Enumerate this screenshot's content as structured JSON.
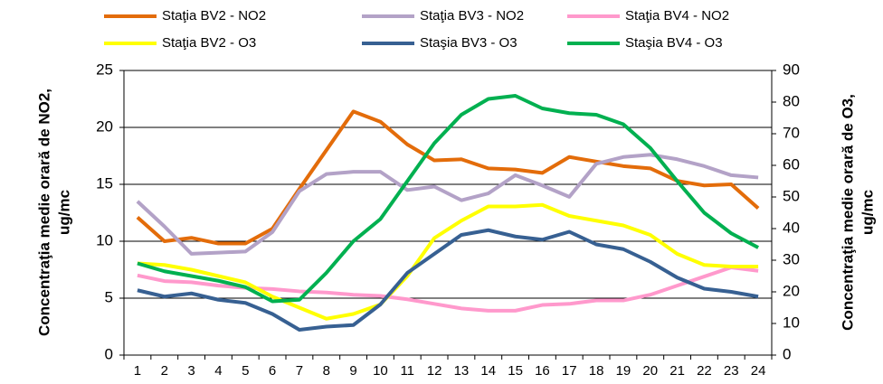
{
  "chart_data": {
    "type": "line",
    "categories": [
      1,
      2,
      3,
      4,
      5,
      6,
      7,
      8,
      9,
      10,
      11,
      12,
      13,
      14,
      15,
      16,
      17,
      18,
      19,
      20,
      21,
      22,
      23,
      24
    ],
    "y_label": [
      "Concentraţia medie orară de NO2,",
      "ug/mc"
    ],
    "y2_label": [
      "Concentraţia medie orară de O3,",
      "ug/mc"
    ],
    "ylim": [
      0,
      25
    ],
    "yticks": [
      0,
      5,
      10,
      15,
      20,
      25
    ],
    "y2lim": [
      0,
      90
    ],
    "y2ticks": [
      0,
      10,
      20,
      30,
      40,
      50,
      60,
      70,
      80,
      90
    ],
    "grid": true,
    "legend": "top",
    "series": [
      {
        "name": "Staţia BV2 - NO2",
        "color": "#e36c0a",
        "values": [
          12.1,
          10.0,
          10.3,
          9.8,
          9.8,
          11.1,
          14.6,
          18.0,
          21.4,
          20.5,
          18.5,
          17.1,
          17.2,
          16.4,
          16.3,
          16.0,
          17.4,
          17.0,
          16.6,
          16.4,
          15.3,
          14.9,
          15.0,
          12.9
        ]
      },
      {
        "name": "Staţia BV3 - NO2",
        "color": "#b3a2c7",
        "values": [
          13.5,
          11.3,
          8.9,
          9.0,
          9.1,
          10.8,
          14.4,
          15.9,
          16.1,
          16.1,
          14.5,
          14.8,
          13.6,
          14.2,
          15.8,
          14.9,
          13.9,
          16.8,
          17.4,
          17.6,
          17.2,
          16.6,
          15.8,
          15.6
        ]
      },
      {
        "name": "Staţia BV4 - NO2",
        "color": "#ff99cc",
        "values": [
          7.0,
          6.5,
          6.4,
          6.1,
          5.9,
          5.8,
          5.6,
          5.5,
          5.3,
          5.2,
          4.9,
          4.5,
          4.1,
          3.9,
          3.9,
          4.4,
          4.5,
          4.8,
          4.8,
          5.3,
          6.1,
          6.9,
          7.7,
          7.4
        ]
      },
      {
        "name": "Staţia BV2 - O3",
        "color": "#ffff00",
        "axis": "y2",
        "values": [
          29,
          28.5,
          27,
          25,
          23,
          18.5,
          15,
          11.5,
          13,
          16,
          25,
          37,
          42.5,
          47,
          47,
          47.5,
          44,
          42.5,
          41,
          38,
          32,
          28.5,
          28,
          28
        ]
      },
      {
        "name": "Staşia BV3 - O3",
        "color": "#376092",
        "axis": "y2",
        "values": [
          20.5,
          18.5,
          19.5,
          17.5,
          16.5,
          13,
          8,
          9,
          9.5,
          16,
          26,
          32,
          38,
          39.5,
          37.5,
          36.5,
          39,
          35,
          33.5,
          29.5,
          24.5,
          21,
          20,
          18.5
        ]
      },
      {
        "name": "Staşia BV4 - O3",
        "color": "#00b050",
        "axis": "y2",
        "values": [
          29,
          26.5,
          25,
          23.5,
          21.5,
          17,
          17.5,
          26,
          36,
          43,
          55,
          67,
          76,
          81,
          82,
          78,
          76.5,
          76,
          73,
          65.5,
          55,
          45,
          38.5,
          34
        ]
      }
    ]
  }
}
